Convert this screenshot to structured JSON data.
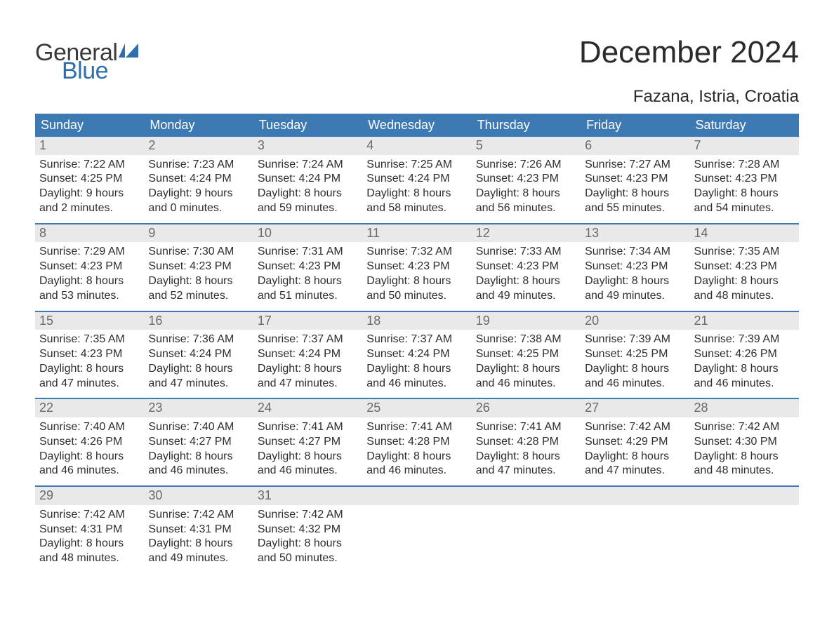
{
  "colors": {
    "header_bg": "#3d79b3",
    "header_text": "#ffffff",
    "daynum_bg": "#e9e9e9",
    "daynum_text": "#6a6a6a",
    "body_text": "#2e2e2e",
    "rule": "#3d79b3",
    "logo_gray": "#3a3a3a",
    "logo_blue": "#2f6fad",
    "title_text": "#2b2b2b",
    "page_bg": "#ffffff"
  },
  "typography": {
    "title_fontsize": 44,
    "location_fontsize": 24,
    "dow_fontsize": 18,
    "daynum_fontsize": 18,
    "body_fontsize": 16,
    "logo_fontsize": 34
  },
  "logo": {
    "line1": "General",
    "line2": "Blue"
  },
  "title": "December 2024",
  "location": "Fazana, Istria, Croatia",
  "days_of_week": [
    "Sunday",
    "Monday",
    "Tuesday",
    "Wednesday",
    "Thursday",
    "Friday",
    "Saturday"
  ],
  "weeks": [
    [
      {
        "n": "1",
        "sunrise": "Sunrise: 7:22 AM",
        "sunset": "Sunset: 4:25 PM",
        "d1": "Daylight: 9 hours",
        "d2": "and 2 minutes."
      },
      {
        "n": "2",
        "sunrise": "Sunrise: 7:23 AM",
        "sunset": "Sunset: 4:24 PM",
        "d1": "Daylight: 9 hours",
        "d2": "and 0 minutes."
      },
      {
        "n": "3",
        "sunrise": "Sunrise: 7:24 AM",
        "sunset": "Sunset: 4:24 PM",
        "d1": "Daylight: 8 hours",
        "d2": "and 59 minutes."
      },
      {
        "n": "4",
        "sunrise": "Sunrise: 7:25 AM",
        "sunset": "Sunset: 4:24 PM",
        "d1": "Daylight: 8 hours",
        "d2": "and 58 minutes."
      },
      {
        "n": "5",
        "sunrise": "Sunrise: 7:26 AM",
        "sunset": "Sunset: 4:23 PM",
        "d1": "Daylight: 8 hours",
        "d2": "and 56 minutes."
      },
      {
        "n": "6",
        "sunrise": "Sunrise: 7:27 AM",
        "sunset": "Sunset: 4:23 PM",
        "d1": "Daylight: 8 hours",
        "d2": "and 55 minutes."
      },
      {
        "n": "7",
        "sunrise": "Sunrise: 7:28 AM",
        "sunset": "Sunset: 4:23 PM",
        "d1": "Daylight: 8 hours",
        "d2": "and 54 minutes."
      }
    ],
    [
      {
        "n": "8",
        "sunrise": "Sunrise: 7:29 AM",
        "sunset": "Sunset: 4:23 PM",
        "d1": "Daylight: 8 hours",
        "d2": "and 53 minutes."
      },
      {
        "n": "9",
        "sunrise": "Sunrise: 7:30 AM",
        "sunset": "Sunset: 4:23 PM",
        "d1": "Daylight: 8 hours",
        "d2": "and 52 minutes."
      },
      {
        "n": "10",
        "sunrise": "Sunrise: 7:31 AM",
        "sunset": "Sunset: 4:23 PM",
        "d1": "Daylight: 8 hours",
        "d2": "and 51 minutes."
      },
      {
        "n": "11",
        "sunrise": "Sunrise: 7:32 AM",
        "sunset": "Sunset: 4:23 PM",
        "d1": "Daylight: 8 hours",
        "d2": "and 50 minutes."
      },
      {
        "n": "12",
        "sunrise": "Sunrise: 7:33 AM",
        "sunset": "Sunset: 4:23 PM",
        "d1": "Daylight: 8 hours",
        "d2": "and 49 minutes."
      },
      {
        "n": "13",
        "sunrise": "Sunrise: 7:34 AM",
        "sunset": "Sunset: 4:23 PM",
        "d1": "Daylight: 8 hours",
        "d2": "and 49 minutes."
      },
      {
        "n": "14",
        "sunrise": "Sunrise: 7:35 AM",
        "sunset": "Sunset: 4:23 PM",
        "d1": "Daylight: 8 hours",
        "d2": "and 48 minutes."
      }
    ],
    [
      {
        "n": "15",
        "sunrise": "Sunrise: 7:35 AM",
        "sunset": "Sunset: 4:23 PM",
        "d1": "Daylight: 8 hours",
        "d2": "and 47 minutes."
      },
      {
        "n": "16",
        "sunrise": "Sunrise: 7:36 AM",
        "sunset": "Sunset: 4:24 PM",
        "d1": "Daylight: 8 hours",
        "d2": "and 47 minutes."
      },
      {
        "n": "17",
        "sunrise": "Sunrise: 7:37 AM",
        "sunset": "Sunset: 4:24 PM",
        "d1": "Daylight: 8 hours",
        "d2": "and 47 minutes."
      },
      {
        "n": "18",
        "sunrise": "Sunrise: 7:37 AM",
        "sunset": "Sunset: 4:24 PM",
        "d1": "Daylight: 8 hours",
        "d2": "and 46 minutes."
      },
      {
        "n": "19",
        "sunrise": "Sunrise: 7:38 AM",
        "sunset": "Sunset: 4:25 PM",
        "d1": "Daylight: 8 hours",
        "d2": "and 46 minutes."
      },
      {
        "n": "20",
        "sunrise": "Sunrise: 7:39 AM",
        "sunset": "Sunset: 4:25 PM",
        "d1": "Daylight: 8 hours",
        "d2": "and 46 minutes."
      },
      {
        "n": "21",
        "sunrise": "Sunrise: 7:39 AM",
        "sunset": "Sunset: 4:26 PM",
        "d1": "Daylight: 8 hours",
        "d2": "and 46 minutes."
      }
    ],
    [
      {
        "n": "22",
        "sunrise": "Sunrise: 7:40 AM",
        "sunset": "Sunset: 4:26 PM",
        "d1": "Daylight: 8 hours",
        "d2": "and 46 minutes."
      },
      {
        "n": "23",
        "sunrise": "Sunrise: 7:40 AM",
        "sunset": "Sunset: 4:27 PM",
        "d1": "Daylight: 8 hours",
        "d2": "and 46 minutes."
      },
      {
        "n": "24",
        "sunrise": "Sunrise: 7:41 AM",
        "sunset": "Sunset: 4:27 PM",
        "d1": "Daylight: 8 hours",
        "d2": "and 46 minutes."
      },
      {
        "n": "25",
        "sunrise": "Sunrise: 7:41 AM",
        "sunset": "Sunset: 4:28 PM",
        "d1": "Daylight: 8 hours",
        "d2": "and 46 minutes."
      },
      {
        "n": "26",
        "sunrise": "Sunrise: 7:41 AM",
        "sunset": "Sunset: 4:28 PM",
        "d1": "Daylight: 8 hours",
        "d2": "and 47 minutes."
      },
      {
        "n": "27",
        "sunrise": "Sunrise: 7:42 AM",
        "sunset": "Sunset: 4:29 PM",
        "d1": "Daylight: 8 hours",
        "d2": "and 47 minutes."
      },
      {
        "n": "28",
        "sunrise": "Sunrise: 7:42 AM",
        "sunset": "Sunset: 4:30 PM",
        "d1": "Daylight: 8 hours",
        "d2": "and 48 minutes."
      }
    ],
    [
      {
        "n": "29",
        "sunrise": "Sunrise: 7:42 AM",
        "sunset": "Sunset: 4:31 PM",
        "d1": "Daylight: 8 hours",
        "d2": "and 48 minutes."
      },
      {
        "n": "30",
        "sunrise": "Sunrise: 7:42 AM",
        "sunset": "Sunset: 4:31 PM",
        "d1": "Daylight: 8 hours",
        "d2": "and 49 minutes."
      },
      {
        "n": "31",
        "sunrise": "Sunrise: 7:42 AM",
        "sunset": "Sunset: 4:32 PM",
        "d1": "Daylight: 8 hours",
        "d2": "and 50 minutes."
      },
      {
        "empty": true
      },
      {
        "empty": true
      },
      {
        "empty": true
      },
      {
        "empty": true
      }
    ]
  ]
}
